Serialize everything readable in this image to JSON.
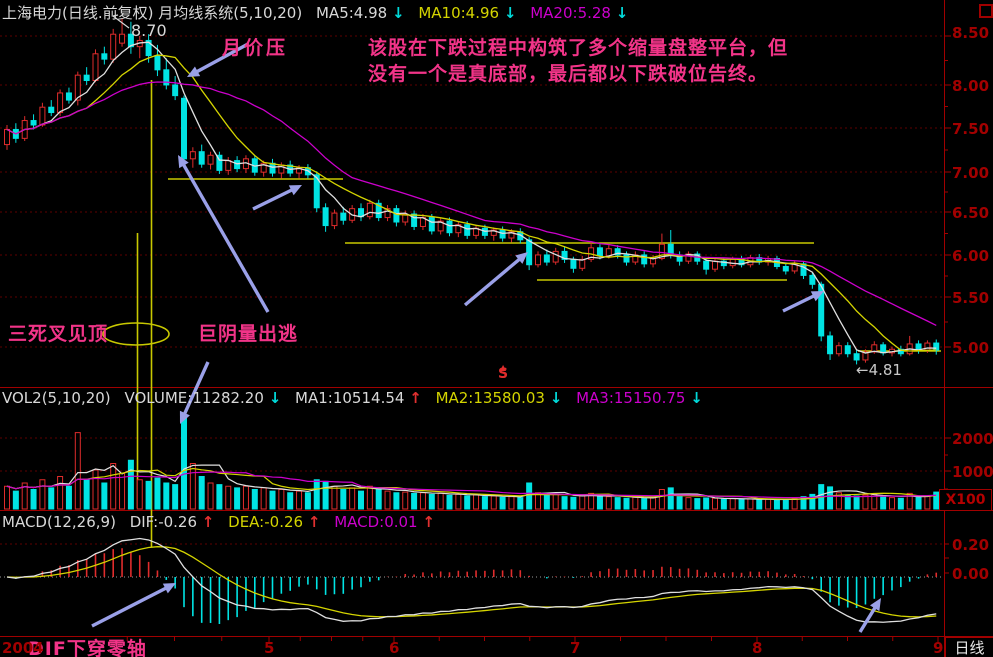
{
  "header": {
    "title": "上海电力(日线.前复权) 月均线系统(5,10,20)",
    "ma5": "MA5:4.98",
    "ma5_dir": "↓",
    "ma10": "MA10:4.96",
    "ma10_dir": "↓",
    "ma20": "MA20:5.28",
    "ma20_dir": "↓"
  },
  "volume_header": {
    "vol_label": "VOL2(5,10,20)",
    "volume": "VOLUME:11282.20",
    "volume_dir": "↓",
    "ma1": "MA1:10514.54",
    "ma1_dir": "↑",
    "ma2": "MA2:13580.03",
    "ma2_dir": "↓",
    "ma3": "MA3:15150.75",
    "ma3_dir": "↓"
  },
  "macd_header": {
    "label": "MACD(12,26,9)",
    "dif": "DIF:-0.26",
    "dif_dir": "↑",
    "dea": "DEA:-0.26",
    "dea_dir": "↑",
    "macd": "MACD:0.01",
    "macd_dir": "↑"
  },
  "annotations": {
    "note_line1": "该股在下跌过程中构筑了多个缩量盘整平台，但",
    "note_line2": "没有一个是真底部，最后都以下跌破位告终。",
    "yue_jia_ya": "月价压",
    "san_si_cha": "三死叉见顶",
    "ju_yin": "巨阴量出逃",
    "dif_cross": "DIF下穿零轴",
    "peak_price": "8.70",
    "low_price": "←4.81",
    "sell_arrow": "▲",
    "sell_letter": "S"
  },
  "price_axis": [
    "8.50",
    "8.00",
    "7.50",
    "7.00",
    "6.50",
    "6.00",
    "5.50",
    "5.00"
  ],
  "volume_axis": [
    "2000",
    "1000"
  ],
  "volume_unit": "X100",
  "macd_axis": [
    "0.20",
    "0.00"
  ],
  "x_axis": {
    "year": "2004",
    "months": [
      "5",
      "6",
      "7",
      "8",
      "9"
    ],
    "period": "日线"
  },
  "colors": {
    "candle_up": "#e02c2c",
    "candle_down": "#00e4e4",
    "ma5": "#e0e0e0",
    "ma10": "#d4d400",
    "ma20": "#cc00cc",
    "annotation_pink": "#f23488",
    "axis_red": "#a20000",
    "grid_red": "#5e0000",
    "arrow_blue": "#9aa0e8",
    "platform_yellow": "#c8c800"
  },
  "chart_data": {
    "type": "candlestick",
    "title": "上海电力 日线 前复权 2004",
    "panes": [
      "price with MA5/MA10/MA20",
      "volume with MA5/MA10/MA20",
      "MACD(12,26,9)"
    ],
    "price_axis_range": [
      4.58,
      8.75
    ],
    "volume_axis_ticks": [
      1000,
      2000
    ],
    "macd_axis_ticks": [
      0.0,
      0.2
    ],
    "x_months": [
      5,
      6,
      7,
      8,
      9
    ],
    "peak": 8.7,
    "low": 4.81,
    "candles_ohlcv": [
      [
        7.28,
        7.5,
        7.22,
        7.45,
        700
      ],
      [
        7.45,
        7.52,
        7.3,
        7.35,
        550
      ],
      [
        7.35,
        7.6,
        7.32,
        7.55,
        800
      ],
      [
        7.55,
        7.62,
        7.45,
        7.5,
        600
      ],
      [
        7.5,
        7.75,
        7.48,
        7.7,
        900
      ],
      [
        7.7,
        7.78,
        7.6,
        7.64,
        650
      ],
      [
        7.64,
        7.9,
        7.6,
        7.86,
        1000
      ],
      [
        7.86,
        7.92,
        7.74,
        7.78,
        700
      ],
      [
        7.78,
        8.1,
        7.72,
        8.06,
        2350
      ],
      [
        8.06,
        8.15,
        7.95,
        8.0,
        900
      ],
      [
        8.0,
        8.35,
        7.98,
        8.3,
        1200
      ],
      [
        8.3,
        8.38,
        8.18,
        8.24,
        800
      ],
      [
        8.24,
        8.58,
        8.2,
        8.52,
        1400
      ],
      [
        8.42,
        8.7,
        8.38,
        8.52,
        1100
      ],
      [
        8.52,
        8.66,
        8.3,
        8.38,
        1500
      ],
      [
        8.38,
        8.5,
        8.25,
        8.45,
        900
      ],
      [
        8.45,
        8.52,
        8.2,
        8.28,
        850
      ],
      [
        8.28,
        8.4,
        8.05,
        8.12,
        950
      ],
      [
        8.12,
        8.25,
        7.9,
        7.95,
        800
      ],
      [
        7.95,
        8.05,
        7.78,
        7.83,
        750
      ],
      [
        7.8,
        7.83,
        7.05,
        7.12,
        2800
      ],
      [
        7.12,
        7.25,
        7.02,
        7.2,
        1400
      ],
      [
        7.2,
        7.28,
        7.02,
        7.06,
        1000
      ],
      [
        7.06,
        7.2,
        7.0,
        7.16,
        800
      ],
      [
        7.16,
        7.2,
        6.95,
        6.99,
        750
      ],
      [
        6.99,
        7.14,
        6.94,
        7.1,
        700
      ],
      [
        7.1,
        7.15,
        6.97,
        7.01,
        650
      ],
      [
        7.01,
        7.16,
        6.96,
        7.12,
        700
      ],
      [
        7.12,
        7.16,
        6.93,
        6.97,
        600
      ],
      [
        6.97,
        7.1,
        6.92,
        7.07,
        650
      ],
      [
        7.07,
        7.12,
        6.92,
        6.96,
        550
      ],
      [
        6.96,
        7.08,
        6.9,
        7.05,
        600
      ],
      [
        7.05,
        7.1,
        6.92,
        6.96,
        500
      ],
      [
        6.96,
        7.05,
        6.9,
        7.02,
        550
      ],
      [
        7.02,
        7.06,
        6.9,
        6.94,
        500
      ],
      [
        6.94,
        6.98,
        6.52,
        6.57,
        900
      ],
      [
        6.57,
        6.62,
        6.3,
        6.37,
        850
      ],
      [
        6.37,
        6.55,
        6.33,
        6.51,
        700
      ],
      [
        6.51,
        6.58,
        6.38,
        6.43,
        600
      ],
      [
        6.43,
        6.6,
        6.4,
        6.56,
        650
      ],
      [
        6.56,
        6.62,
        6.42,
        6.47,
        550
      ],
      [
        6.47,
        6.66,
        6.44,
        6.62,
        700
      ],
      [
        6.62,
        6.66,
        6.42,
        6.46,
        600
      ],
      [
        6.46,
        6.6,
        6.42,
        6.56,
        550
      ],
      [
        6.56,
        6.6,
        6.36,
        6.41,
        500
      ],
      [
        6.41,
        6.54,
        6.37,
        6.5,
        520
      ],
      [
        6.5,
        6.54,
        6.32,
        6.36,
        480
      ],
      [
        6.36,
        6.5,
        6.32,
        6.46,
        500
      ],
      [
        6.46,
        6.5,
        6.27,
        6.31,
        450
      ],
      [
        6.31,
        6.46,
        6.27,
        6.42,
        480
      ],
      [
        6.42,
        6.46,
        6.25,
        6.29,
        420
      ],
      [
        6.29,
        6.42,
        6.24,
        6.38,
        450
      ],
      [
        6.38,
        6.42,
        6.22,
        6.26,
        400
      ],
      [
        6.26,
        6.38,
        6.22,
        6.34,
        430
      ],
      [
        6.34,
        6.38,
        6.22,
        6.26,
        380
      ],
      [
        6.26,
        6.35,
        6.2,
        6.32,
        400
      ],
      [
        6.32,
        6.36,
        6.19,
        6.23,
        360
      ],
      [
        6.23,
        6.33,
        6.18,
        6.3,
        380
      ],
      [
        6.3,
        6.34,
        6.17,
        6.21,
        350
      ],
      [
        6.21,
        6.24,
        5.87,
        5.93,
        800
      ],
      [
        5.93,
        6.08,
        5.9,
        6.04,
        500
      ],
      [
        6.04,
        6.1,
        5.92,
        5.96,
        420
      ],
      [
        5.96,
        6.12,
        5.93,
        6.08,
        450
      ],
      [
        6.08,
        6.13,
        5.95,
        5.99,
        380
      ],
      [
        5.99,
        6.02,
        5.84,
        5.89,
        360
      ],
      [
        5.89,
        6.03,
        5.86,
        5.99,
        400
      ],
      [
        5.99,
        6.18,
        5.96,
        6.12,
        480
      ],
      [
        6.12,
        6.16,
        5.99,
        6.03,
        400
      ],
      [
        6.03,
        6.15,
        6.0,
        6.11,
        380
      ],
      [
        6.11,
        6.15,
        6.0,
        6.04,
        350
      ],
      [
        6.04,
        6.08,
        5.92,
        5.96,
        330
      ],
      [
        5.96,
        6.08,
        5.93,
        6.04,
        360
      ],
      [
        6.04,
        6.08,
        5.9,
        5.94,
        320
      ],
      [
        5.94,
        6.04,
        5.9,
        6.0,
        340
      ],
      [
        6.0,
        6.28,
        5.98,
        6.16,
        600
      ],
      [
        6.16,
        6.32,
        6.0,
        6.04,
        650
      ],
      [
        6.04,
        6.08,
        5.92,
        5.97,
        380
      ],
      [
        5.97,
        6.08,
        5.94,
        6.05,
        350
      ],
      [
        6.05,
        6.08,
        5.93,
        5.97,
        320
      ],
      [
        5.97,
        6.0,
        5.82,
        5.88,
        340
      ],
      [
        5.88,
        6.0,
        5.85,
        5.97,
        330
      ],
      [
        5.97,
        6.01,
        5.88,
        5.92,
        300
      ],
      [
        5.92,
        6.02,
        5.89,
        5.99,
        320
      ],
      [
        5.99,
        6.03,
        5.9,
        5.93,
        290
      ],
      [
        5.93,
        6.04,
        5.9,
        6.01,
        310
      ],
      [
        6.01,
        6.05,
        5.93,
        5.96,
        280
      ],
      [
        5.96,
        6.03,
        5.92,
        6.0,
        300
      ],
      [
        6.0,
        6.03,
        5.88,
        5.91,
        280
      ],
      [
        5.91,
        5.95,
        5.82,
        5.86,
        300
      ],
      [
        5.86,
        5.97,
        5.83,
        5.94,
        320
      ],
      [
        5.94,
        5.97,
        5.77,
        5.81,
        380
      ],
      [
        5.81,
        5.84,
        5.66,
        5.71,
        450
      ],
      [
        5.71,
        5.74,
        5.07,
        5.13,
        750
      ],
      [
        5.13,
        5.18,
        4.86,
        4.93,
        680
      ],
      [
        4.93,
        5.06,
        4.9,
        5.02,
        500
      ],
      [
        5.02,
        5.06,
        4.89,
        4.93,
        420
      ],
      [
        4.93,
        4.97,
        4.81,
        4.86,
        400
      ],
      [
        4.86,
        4.98,
        4.83,
        4.95,
        430
      ],
      [
        4.95,
        5.07,
        4.93,
        5.03,
        450
      ],
      [
        5.03,
        5.06,
        4.91,
        4.94,
        380
      ],
      [
        4.94,
        5.01,
        4.9,
        4.98,
        350
      ],
      [
        4.98,
        5.02,
        4.9,
        4.93,
        330
      ],
      [
        4.93,
        5.13,
        4.91,
        5.04,
        480
      ],
      [
        5.04,
        5.08,
        4.93,
        4.97,
        360
      ],
      [
        4.97,
        5.08,
        4.94,
        5.05,
        400
      ],
      [
        5.05,
        5.09,
        4.92,
        4.97,
        520
      ]
    ]
  }
}
